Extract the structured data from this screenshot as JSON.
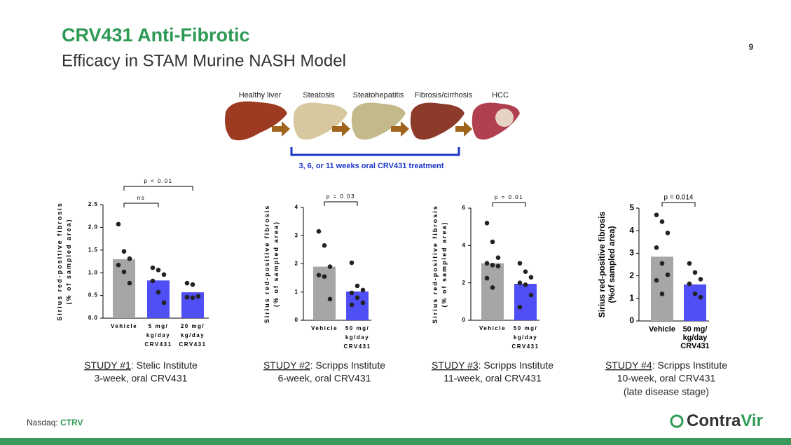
{
  "header": {
    "title": "CRV431 Anti-Fibrotic",
    "subtitle": "Efficacy in STAM Murine NASH Model",
    "page_number": "9"
  },
  "diagram": {
    "stages": [
      "Healthy liver",
      "Steatosis",
      "Steatohepatitis",
      "Fibrosis/cirrhosis",
      "HCC"
    ],
    "treatment": "3, 6, or 11 weeks oral CRV431 treatment"
  },
  "chart_data": [
    {
      "type": "bar",
      "y_label": [
        "Sirius red-positive fibrosis",
        "(% of sampled area)"
      ],
      "categories": [
        [
          "Vehicle"
        ],
        [
          "5 mg/",
          "kg/day",
          "CRV431"
        ],
        [
          "20 mg/",
          "kg/day",
          "CRV431"
        ]
      ],
      "values": [
        1.3,
        0.83,
        0.57
      ],
      "points": [
        [
          2.07,
          1.47,
          1.31,
          1.17,
          1.02,
          0.77
        ],
        [
          1.11,
          1.06,
          0.96,
          0.82,
          0.57,
          0.34
        ],
        [
          0.77,
          0.74,
          0.48,
          0.46,
          0.45
        ]
      ],
      "colors": [
        "#a6a6a6",
        "#4f4ff5",
        "#4f4ff5"
      ],
      "ylim": [
        0,
        2.5
      ],
      "yticks": [
        {
          "value": 0,
          "label": "0.0"
        },
        {
          "value": 0.5,
          "label": "0.5"
        },
        {
          "value": 1,
          "label": "1.0"
        },
        {
          "value": 1.5,
          "label": "1.5"
        },
        {
          "value": 2,
          "label": "2.0"
        },
        {
          "value": 2.5,
          "label": "2.5"
        }
      ],
      "annotations": [
        "p < 0.01",
        "ns"
      ]
    },
    {
      "type": "bar",
      "y_label": [
        "Sirius red-positive fibrosis",
        "(% of sampled area)"
      ],
      "categories": [
        [
          "Vehicle"
        ],
        [
          "50 mg/",
          "kg/day",
          "CRV431"
        ]
      ],
      "values": [
        1.9,
        1.02
      ],
      "points": [
        [
          3.15,
          2.65,
          1.9,
          1.6,
          1.55,
          0.75
        ],
        [
          2.04,
          1.22,
          1.07,
          0.97,
          0.8,
          0.62,
          0.55
        ]
      ],
      "colors": [
        "#a6a6a6",
        "#4f4ff5"
      ],
      "ylim": [
        0,
        4
      ],
      "yticks": [
        0,
        1,
        2,
        3,
        4
      ],
      "annotations": [
        "p = 0.03"
      ]
    },
    {
      "type": "bar",
      "y_label": [
        "Sirius red-positive fibrosis",
        "(% of sampled area)"
      ],
      "categories": [
        [
          "Vehicle"
        ],
        [
          "50 mg/",
          "kg/day",
          "CRV431"
        ]
      ],
      "values": [
        3.05,
        1.95
      ],
      "points": [
        [
          5.2,
          4.2,
          3.35,
          3.05,
          2.95,
          2.9,
          2.25,
          1.75
        ],
        [
          3.05,
          2.6,
          2.3,
          2.0,
          1.9,
          1.35,
          0.7
        ]
      ],
      "colors": [
        "#a6a6a6",
        "#4f4ff5"
      ],
      "ylim": [
        0,
        6
      ],
      "yticks": [
        0,
        2,
        4,
        6
      ],
      "annotations": [
        "p = 0.01"
      ]
    },
    {
      "type": "bar",
      "y_label": [
        "Sirius red-positive fibrosis",
        "(%of sampled area)"
      ],
      "categories": [
        [
          "Vehicle"
        ],
        [
          "50 mg/",
          "kg/day",
          "CRV431"
        ]
      ],
      "values": [
        2.85,
        1.62
      ],
      "points": [
        [
          4.7,
          4.4,
          3.9,
          3.25,
          2.55,
          2.05,
          1.8,
          1.2
        ],
        [
          2.55,
          2.15,
          1.85,
          1.65,
          1.2,
          1.05
        ]
      ],
      "colors": [
        "#a6a6a6",
        "#4f4ff5"
      ],
      "ylim": [
        0,
        5
      ],
      "yticks": [
        0,
        1,
        2,
        3,
        4,
        5
      ],
      "annotations": [
        "p = 0.014"
      ]
    }
  ],
  "studies": [
    {
      "label": "STUDY #1",
      "institute": ": Stelic Institute",
      "lines": [
        "3-week, oral CRV431"
      ]
    },
    {
      "label": "STUDY #2",
      "institute": ": Scripps Institute",
      "lines": [
        "6-week, oral CRV431"
      ]
    },
    {
      "label": "STUDY #3",
      "institute": ": Scripps Institute",
      "lines": [
        "11-week, oral CRV431"
      ]
    },
    {
      "label": "STUDY #4",
      "institute": ": Scripps Institute",
      "lines": [
        "10-week, oral CRV431",
        "(late disease stage)"
      ]
    }
  ],
  "footer": {
    "exchange": "Nasdaq: ",
    "ticker": "CTRV",
    "logo": [
      "Contra",
      "Vir"
    ]
  }
}
